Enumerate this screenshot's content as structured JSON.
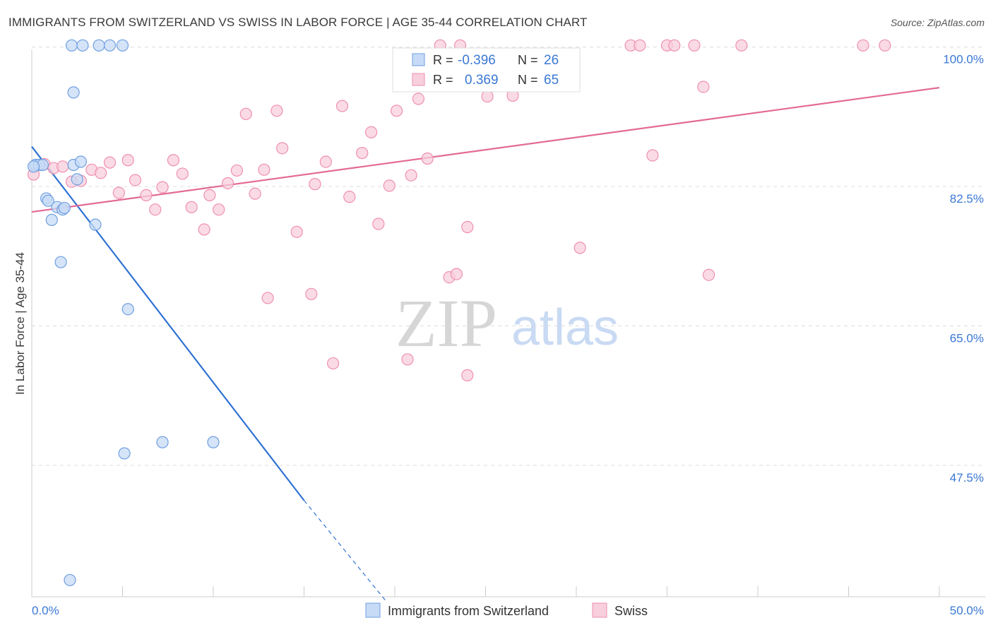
{
  "chart_data": {
    "type": "scatter",
    "title": "IMMIGRANTS FROM SWITZERLAND VS SWISS IN LABOR FORCE | AGE 35-44 CORRELATION CHART",
    "source": "Source: ZipAtlas.com",
    "ylabel": "In Labor Force | Age 35-44",
    "xlim": [
      0,
      50
    ],
    "ylim": [
      31,
      102
    ],
    "x_tick_labels": [
      "0.0%",
      "50.0%"
    ],
    "y_ticks": [
      47.5,
      65.0,
      82.5,
      100.0
    ],
    "y_tick_labels": [
      "47.5%",
      "65.0%",
      "82.5%",
      "100.0%"
    ],
    "watermark": {
      "zip": "ZIP",
      "atlas": "atlas"
    },
    "legend_box": [
      {
        "r_label": "R =",
        "r_value": "-0.396",
        "n_label": "N =",
        "n_value": "26"
      },
      {
        "r_label": "R =",
        "r_value": "0.369",
        "n_label": "N =",
        "n_value": "65"
      }
    ],
    "series": [
      {
        "name": "Immigrants from Switzerland",
        "color": "#6f9fe0",
        "fill": "#c7dbf6",
        "line_color": "#2f73d3",
        "trend": {
          "x0": 0,
          "y0": 87.5,
          "x1": 15,
          "y1": 43.1,
          "dash_to_x": 19.5,
          "dash_to_y": 30.5
        },
        "points": [
          [
            2.2,
            100.2
          ],
          [
            2.8,
            100.2
          ],
          [
            3.7,
            100.2
          ],
          [
            4.3,
            100.2
          ],
          [
            5.0,
            100.2
          ],
          [
            2.3,
            94.3
          ],
          [
            0.2,
            85.2
          ],
          [
            0.4,
            85.2
          ],
          [
            0.6,
            85.2
          ],
          [
            2.3,
            85.2
          ],
          [
            2.7,
            85.6
          ],
          [
            2.5,
            83.4
          ],
          [
            0.8,
            81.0
          ],
          [
            0.9,
            80.7
          ],
          [
            1.4,
            79.9
          ],
          [
            1.7,
            79.6
          ],
          [
            1.8,
            79.8
          ],
          [
            1.1,
            78.3
          ],
          [
            3.5,
            77.7
          ],
          [
            1.6,
            73.0
          ],
          [
            5.3,
            67.1
          ],
          [
            5.1,
            49.0
          ],
          [
            7.2,
            50.4
          ],
          [
            10.0,
            50.4
          ],
          [
            2.1,
            33.1
          ],
          [
            0.1,
            85.0
          ]
        ]
      },
      {
        "name": "Swiss",
        "color": "#ef8fb0",
        "fill": "#f8cfdc",
        "line_color": "#e36a95",
        "trend": {
          "x0": 0,
          "y0": 79.3,
          "x1": 50,
          "y1": 94.9
        },
        "points": [
          [
            0.1,
            84.0
          ],
          [
            0.7,
            85.3
          ],
          [
            1.2,
            84.8
          ],
          [
            1.7,
            85.0
          ],
          [
            2.2,
            83.1
          ],
          [
            2.7,
            83.2
          ],
          [
            3.3,
            84.6
          ],
          [
            3.8,
            84.2
          ],
          [
            4.3,
            85.5
          ],
          [
            4.8,
            81.7
          ],
          [
            5.3,
            85.8
          ],
          [
            5.7,
            83.3
          ],
          [
            6.3,
            81.4
          ],
          [
            6.8,
            79.6
          ],
          [
            7.2,
            82.4
          ],
          [
            7.8,
            85.8
          ],
          [
            8.3,
            84.1
          ],
          [
            8.8,
            79.9
          ],
          [
            9.5,
            77.1
          ],
          [
            9.8,
            81.4
          ],
          [
            10.3,
            79.6
          ],
          [
            10.8,
            82.9
          ],
          [
            11.3,
            84.5
          ],
          [
            11.8,
            91.6
          ],
          [
            12.3,
            81.6
          ],
          [
            12.8,
            84.6
          ],
          [
            13.0,
            68.5
          ],
          [
            13.5,
            92.0
          ],
          [
            13.8,
            87.3
          ],
          [
            14.6,
            76.8
          ],
          [
            15.4,
            69.0
          ],
          [
            15.6,
            82.8
          ],
          [
            16.2,
            85.6
          ],
          [
            16.6,
            60.3
          ],
          [
            17.1,
            92.6
          ],
          [
            17.5,
            81.2
          ],
          [
            18.2,
            86.7
          ],
          [
            18.7,
            89.3
          ],
          [
            19.1,
            77.8
          ],
          [
            19.7,
            82.6
          ],
          [
            20.1,
            92.0
          ],
          [
            20.7,
            60.8
          ],
          [
            20.9,
            83.9
          ],
          [
            21.3,
            93.5
          ],
          [
            21.8,
            86.0
          ],
          [
            22.5,
            100.2
          ],
          [
            23.0,
            71.1
          ],
          [
            23.4,
            71.5
          ],
          [
            24.0,
            77.4
          ],
          [
            23.6,
            100.2
          ],
          [
            24.0,
            58.8
          ],
          [
            25.1,
            93.8
          ],
          [
            26.5,
            93.9
          ],
          [
            30.2,
            74.8
          ],
          [
            33.0,
            100.2
          ],
          [
            33.5,
            100.2
          ],
          [
            34.2,
            86.4
          ],
          [
            35.0,
            100.2
          ],
          [
            35.4,
            100.2
          ],
          [
            36.5,
            100.2
          ],
          [
            37.0,
            95.0
          ],
          [
            37.3,
            71.4
          ],
          [
            39.1,
            100.2
          ],
          [
            45.8,
            100.2
          ],
          [
            47.0,
            100.2
          ]
        ]
      }
    ]
  }
}
